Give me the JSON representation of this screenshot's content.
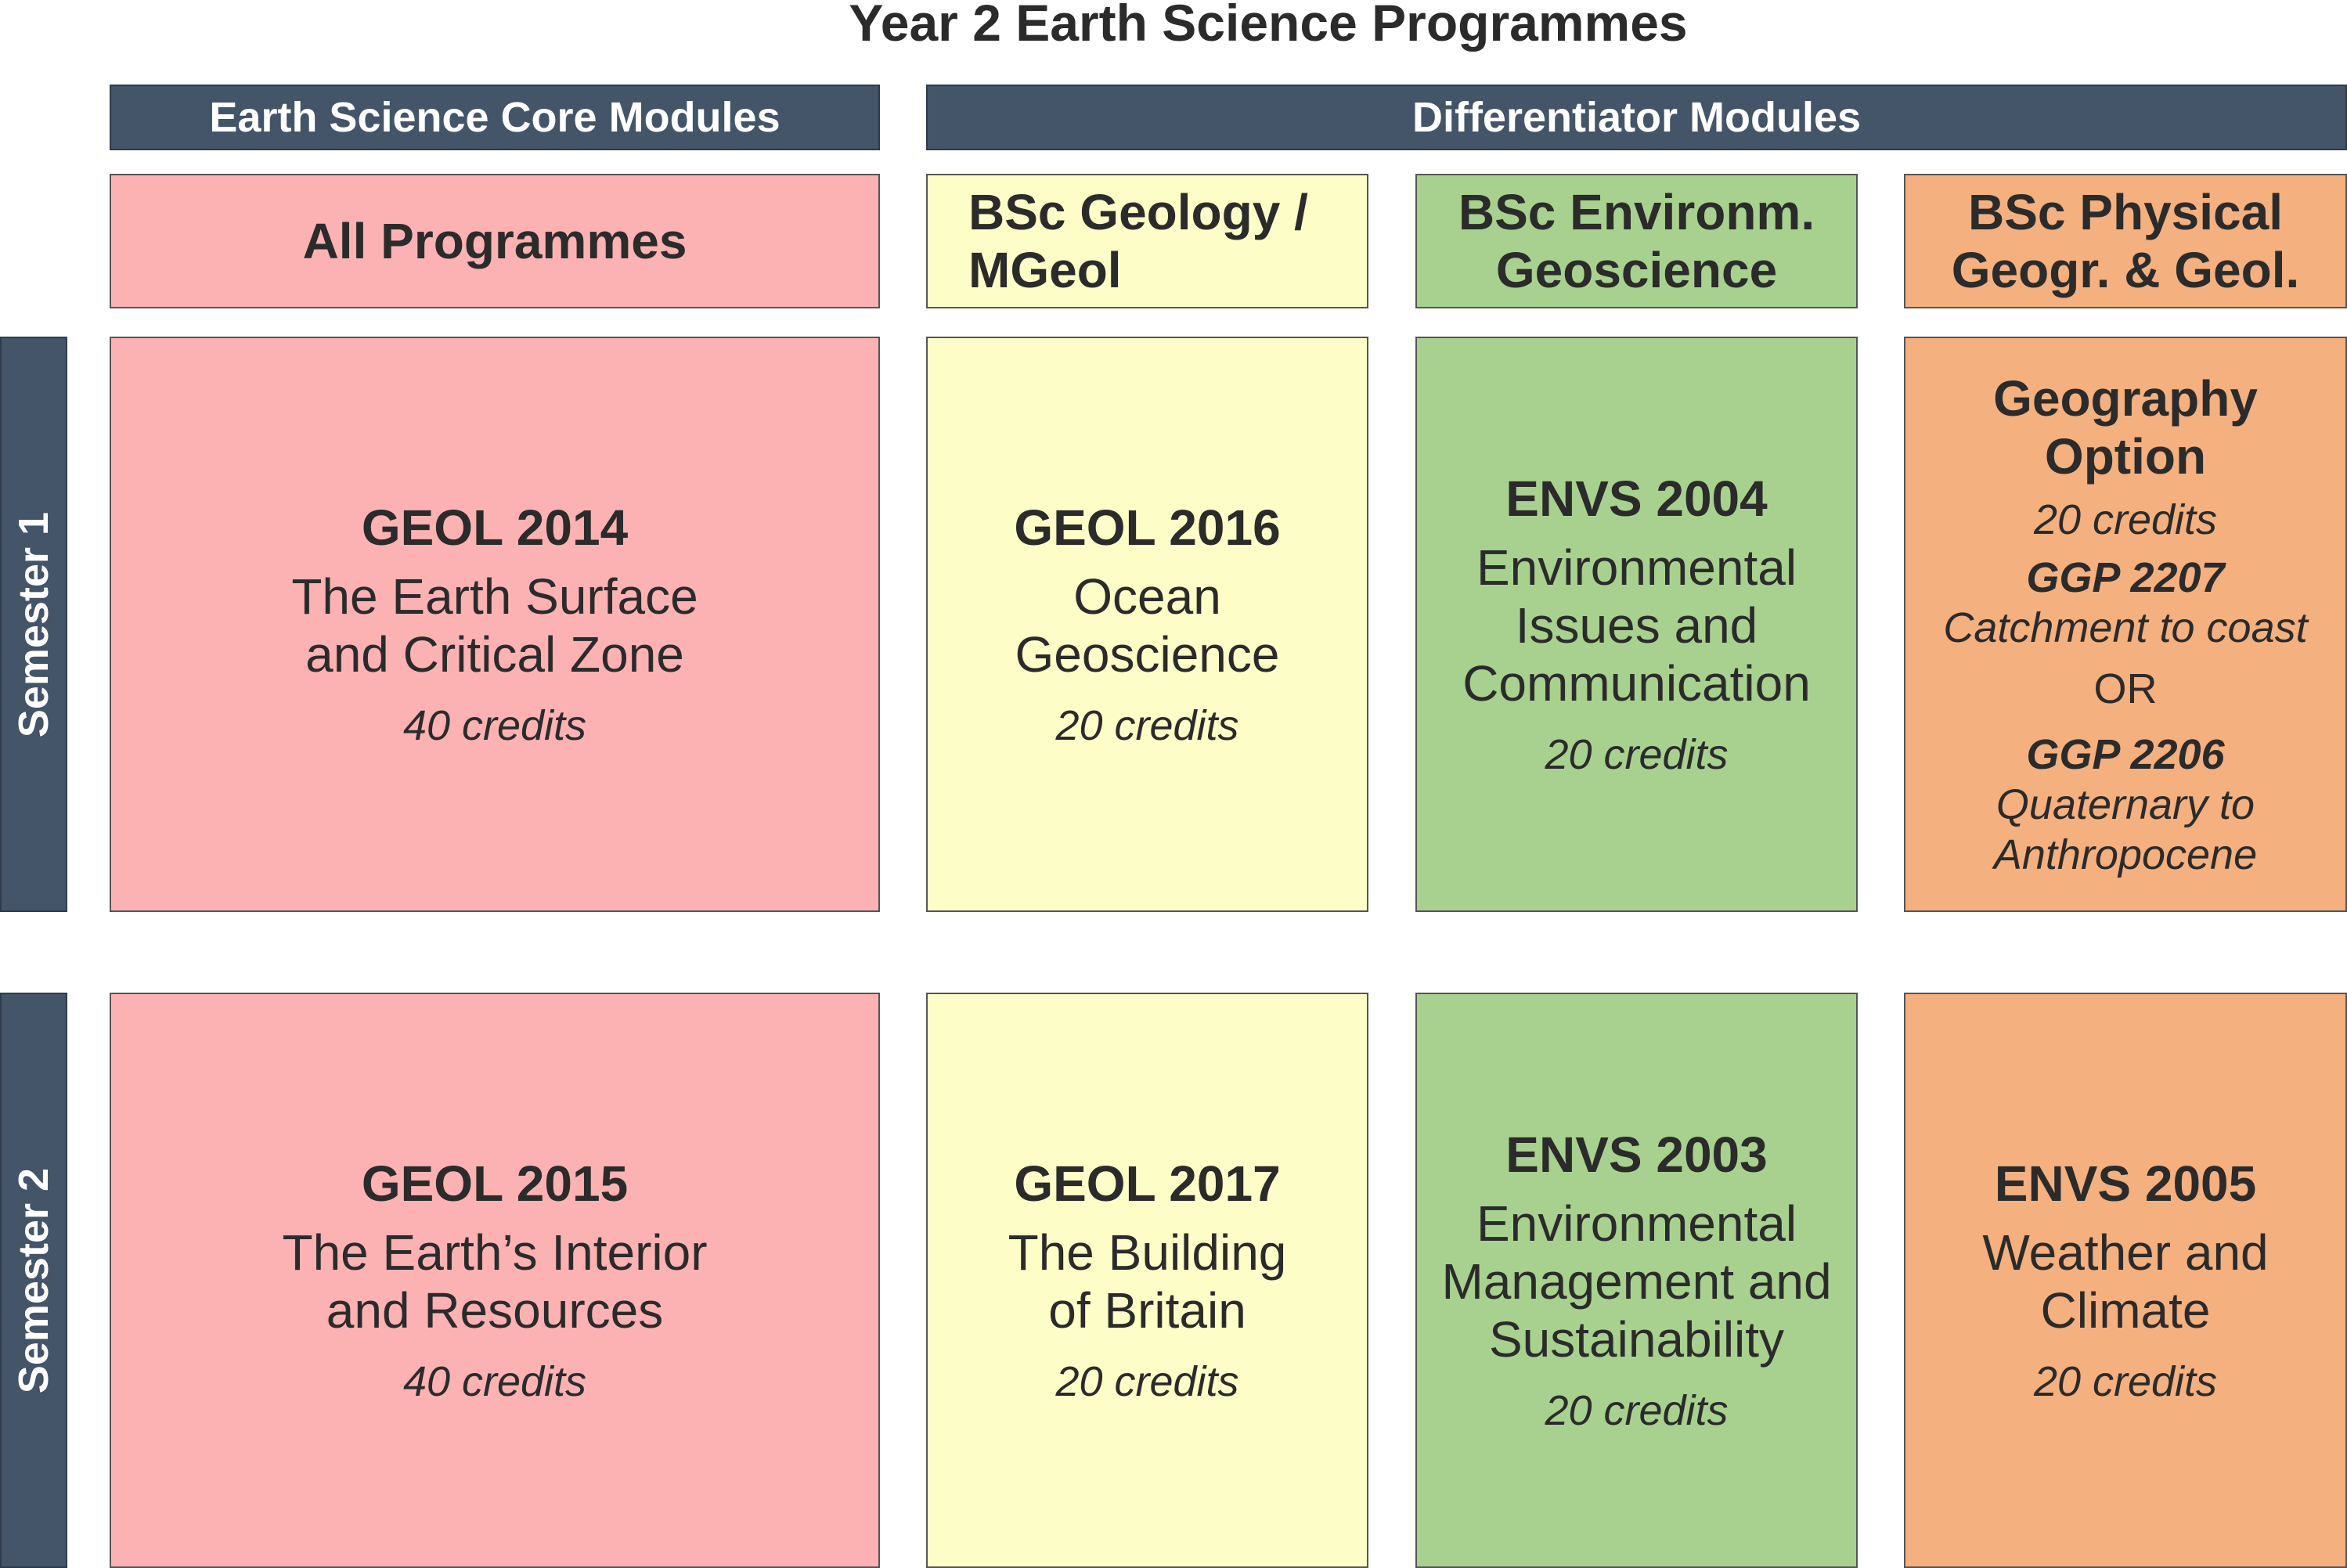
{
  "title": "Year 2 Earth Science Programmes",
  "top_headers": {
    "core": "Earth Science Core Modules",
    "differentiator": "Differentiator Modules"
  },
  "programmes": {
    "all": [
      "All Programmes"
    ],
    "geology": [
      "BSc Geology /",
      "MGeol"
    ],
    "environ": [
      "BSc Environm.",
      "Geoscience"
    ],
    "physical": [
      "BSc Physical",
      "Geogr. & Geol."
    ]
  },
  "semesters": [
    "Semester 1",
    "Semester 2"
  ],
  "semester1": {
    "core": {
      "code": "GEOL 2014",
      "name": [
        "The Earth Surface",
        "and Critical Zone"
      ],
      "credits": "40 credits"
    },
    "geology": {
      "code": "GEOL 2016",
      "name": [
        "Ocean",
        "Geoscience"
      ],
      "credits": "20 credits"
    },
    "environ": {
      "code": "ENVS 2004",
      "name": [
        "Environmental",
        "Issues and",
        "Communication"
      ],
      "credits": "20 credits"
    },
    "physical": {
      "title": [
        "Geography",
        "Option"
      ],
      "credits": "20 credits",
      "option1": {
        "code": "GGP 2207",
        "name": [
          "Catchment to coast"
        ]
      },
      "or": "OR",
      "option2": {
        "code": "GGP 2206",
        "name": [
          "Quaternary to",
          "Anthropocene"
        ]
      }
    }
  },
  "semester2": {
    "core": {
      "code": "GEOL 2015",
      "name": [
        "The Earth’s Interior",
        "and Resources"
      ],
      "credits": "40 credits"
    },
    "geology": {
      "code": "GEOL 2017",
      "name": [
        "The Building",
        "of Britain"
      ],
      "credits": "20 credits"
    },
    "environ": {
      "code": "ENVS 2003",
      "name": [
        "Environmental",
        "Management and",
        "Sustainability"
      ],
      "credits": "20 credits"
    },
    "physical": {
      "code": "ENVS 2005",
      "name": [
        "Weather and",
        "Climate"
      ],
      "credits": "20 credits"
    }
  },
  "colors": {
    "header_bar": "#445469",
    "core": "#fcb2b3",
    "geology": "#fdfdc8",
    "environ": "#a8d18f",
    "physical": "#f4b07f"
  }
}
